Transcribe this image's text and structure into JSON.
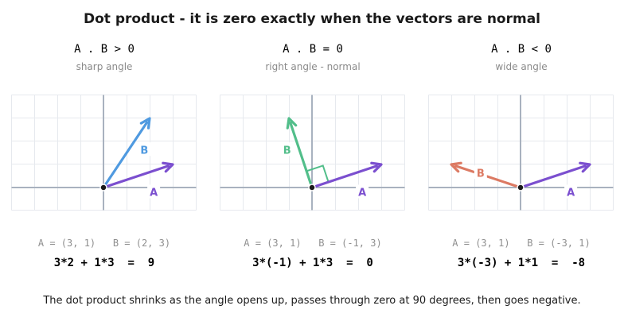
{
  "title": "Dot product  -  it is zero exactly when the vectors are normal",
  "footer": "The dot product shrinks as the angle opens up, passes through zero at 90 degrees, then goes negative.",
  "colors": {
    "a_vector": "#7b4fcf",
    "grid": "#e6e9ee",
    "axis": "#a9b2bf",
    "origin": "#1a1a1a"
  },
  "panels": [
    {
      "heading": "A . B > 0",
      "subheading": "sharp angle",
      "color": "#4f9ae0",
      "a": [
        3,
        1
      ],
      "b": [
        2,
        3
      ],
      "label_a": "A",
      "label_b": "B",
      "coords_text": "A = (3, 1)   B = (2, 3)",
      "formula": "3*2 + 1*3  =  9",
      "right_angle_marker": false
    },
    {
      "heading": "A . B = 0",
      "subheading": "right angle - normal",
      "color": "#52be8a",
      "a": [
        3,
        1
      ],
      "b": [
        -1,
        3
      ],
      "label_a": "A",
      "label_b": "B",
      "coords_text": "A = (3, 1)   B = (-1, 3)",
      "formula": "3*(-1) + 1*3  =  0",
      "right_angle_marker": true
    },
    {
      "heading": "A . B < 0",
      "subheading": "wide angle",
      "color": "#dc7a63",
      "a": [
        3,
        1
      ],
      "b": [
        -3,
        1
      ],
      "label_a": "A",
      "label_b": "B",
      "coords_text": "A = (3, 1)   B = (-3, 1)",
      "formula": "3*(-3) + 1*1  =  -8",
      "right_angle_marker": false
    }
  ]
}
